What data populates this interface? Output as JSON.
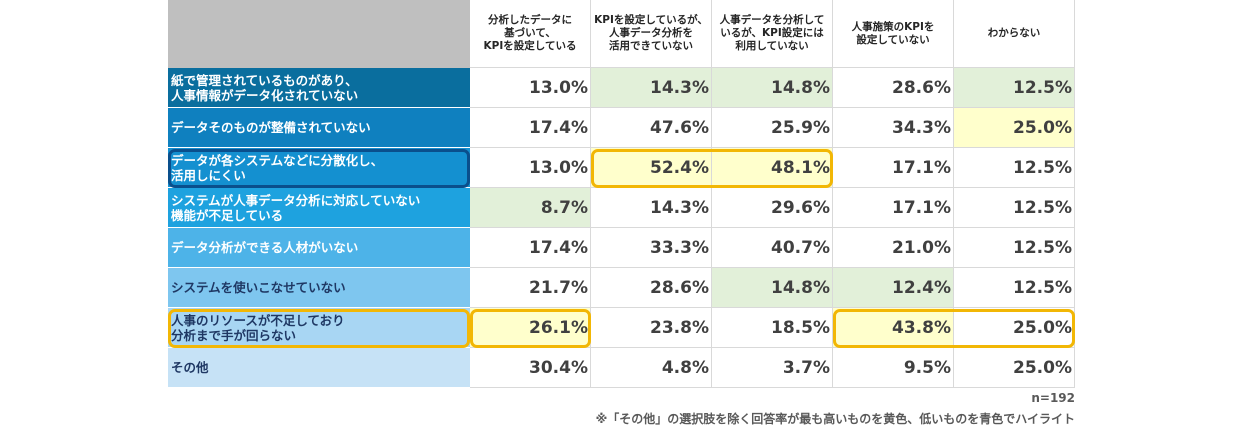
{
  "chart_data": {
    "type": "table",
    "columns": [
      "分析したデータに\n基づいて、\nKPIを設定している",
      "KPIを設定しているが、\n人事データ分析を\n活用できていない",
      "人事データを分析して\nいるが、KPI設定には\n利用していない",
      "人事施策のKPIを\n設定していない",
      "わからない"
    ],
    "rows": [
      {
        "label": "紙で管理されているものがあり、\n人事情報がデータ化されていない",
        "values": [
          "13.0%",
          "14.3%",
          "14.8%",
          "28.6%",
          "12.5%"
        ]
      },
      {
        "label": "データそのものが整備されていない",
        "values": [
          "17.4%",
          "47.6%",
          "25.9%",
          "34.3%",
          "25.0%"
        ]
      },
      {
        "label": "データが各システムなどに分散化し、\n活用しにくい",
        "values": [
          "13.0%",
          "52.4%",
          "48.1%",
          "17.1%",
          "12.5%"
        ]
      },
      {
        "label": "システムが人事データ分析に対応していない\n機能が不足している",
        "values": [
          "8.7%",
          "14.3%",
          "29.6%",
          "17.1%",
          "12.5%"
        ]
      },
      {
        "label": "データ分析ができる人材がいない",
        "values": [
          "17.4%",
          "33.3%",
          "40.7%",
          "21.0%",
          "12.5%"
        ]
      },
      {
        "label": "システムを使いこなせていない",
        "values": [
          "21.7%",
          "28.6%",
          "14.8%",
          "12.4%",
          "12.5%"
        ]
      },
      {
        "label": "人事のリソースが不足しており\n分析まで手が回らない",
        "values": [
          "26.1%",
          "23.8%",
          "18.5%",
          "43.8%",
          "25.0%"
        ]
      },
      {
        "label": "その他",
        "values": [
          "30.4%",
          "4.8%",
          "3.7%",
          "9.5%",
          "25.0%"
        ]
      }
    ],
    "cell_fill": [
      [
        "none",
        "green",
        "green",
        "none",
        "green"
      ],
      [
        "none",
        "none",
        "none",
        "none",
        "yellow"
      ],
      [
        "none",
        "yellow",
        "yellow",
        "none",
        "none"
      ],
      [
        "green",
        "none",
        "none",
        "none",
        "none"
      ],
      [
        "none",
        "none",
        "none",
        "none",
        "none"
      ],
      [
        "none",
        "none",
        "green",
        "green",
        "none"
      ],
      [
        "yellow",
        "none",
        "none",
        "yellow",
        "none"
      ],
      [
        "none",
        "none",
        "none",
        "none",
        "none"
      ]
    ],
    "highlights": [
      {
        "target": "row_label",
        "row": 2,
        "color": "blue"
      },
      {
        "target": "cells",
        "row": 2,
        "col_from": 1,
        "col_to": 2,
        "color": "yellow"
      },
      {
        "target": "row_label",
        "row": 6,
        "color": "yellow"
      },
      {
        "target": "cells",
        "row": 6,
        "col_from": 0,
        "col_to": 0,
        "color": "yellow"
      },
      {
        "target": "cells",
        "row": 6,
        "col_from": 3,
        "col_to": 4,
        "color": "yellow"
      }
    ],
    "row_label_colors": [
      "#0a6e9e",
      "#0f80bf",
      "#1490d0",
      "#1ea2df",
      "#4db3e8",
      "#7ec6ef",
      "#a8d6f3",
      "#c6e2f6"
    ]
  },
  "colors": {
    "green_fill": "#e2f0d9",
    "yellow_fill": "#ffffcc",
    "highlight_yellow": "#f2b705",
    "highlight_blue": "#0a4f8c"
  },
  "notes": {
    "n": "n=192",
    "footnote": "※「その他」の選択肢を除く回答率が最も高いものを黄色、低いものを青色でハイライト"
  }
}
